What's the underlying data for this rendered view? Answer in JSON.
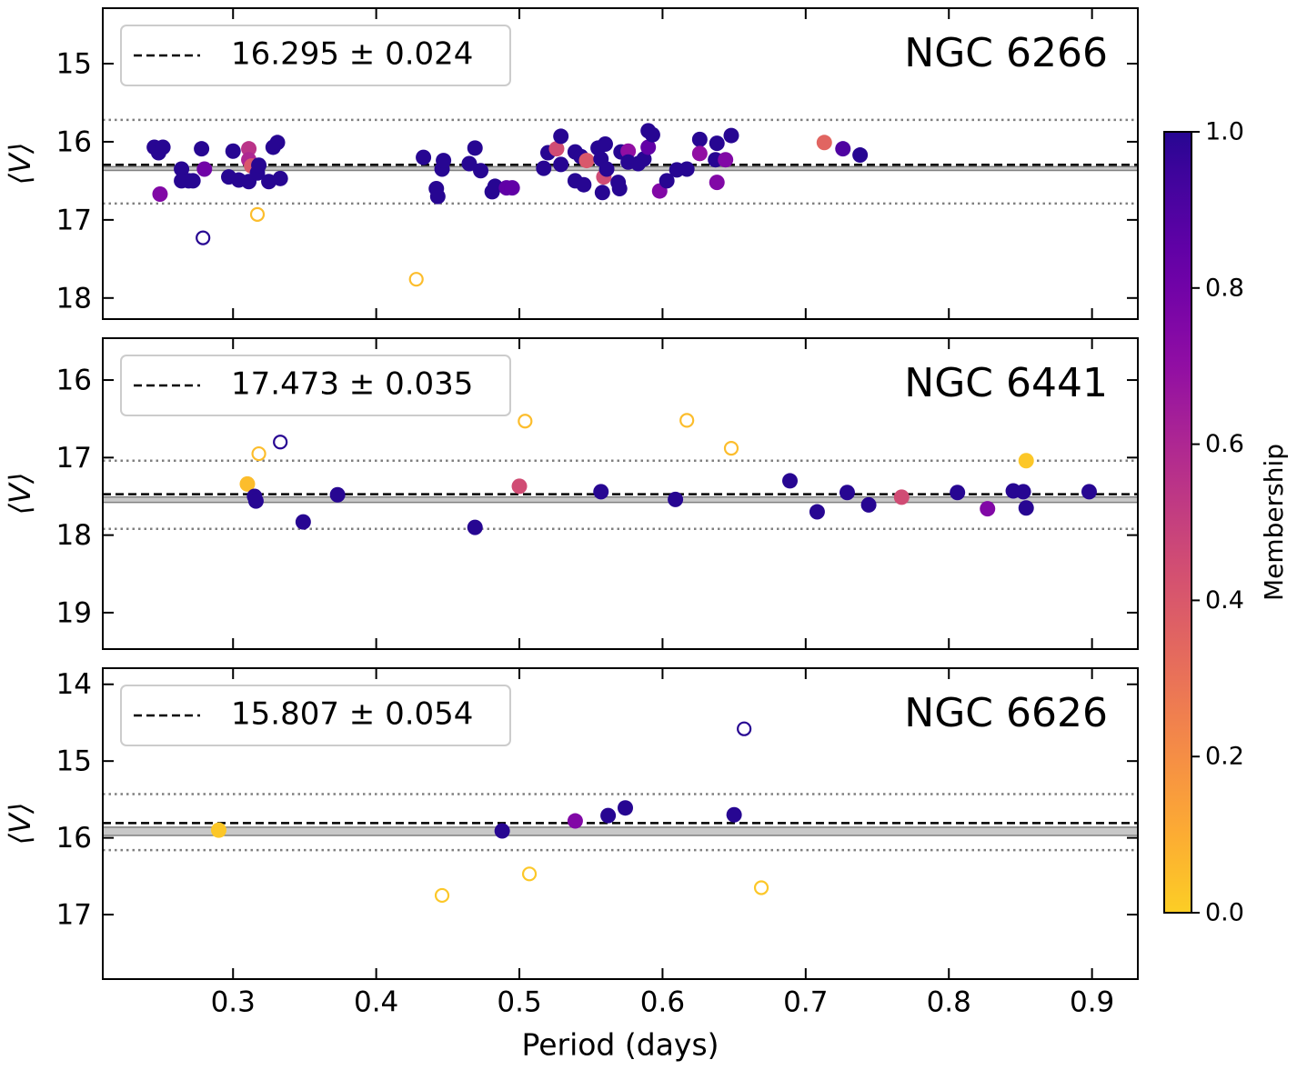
{
  "chart_data": [
    {
      "type": "scatter",
      "title": "NGC 6266",
      "ylabel": "⟨V⟩",
      "xlim": [
        0.209,
        0.932
      ],
      "xticks": [
        0.3,
        0.4,
        0.5,
        0.6,
        0.7,
        0.8,
        0.9
      ],
      "ylim": [
        18.27,
        14.29
      ],
      "yticks": [
        15,
        16,
        17,
        18
      ],
      "mean": {
        "label": "16.295 ± 0.024",
        "value": 16.295,
        "error": 0.024
      },
      "dotted_lines": [
        15.72,
        16.79
      ],
      "x": [
        0.245,
        0.25,
        0.248,
        0.251,
        0.249,
        0.264,
        0.264,
        0.269,
        0.272,
        0.278,
        0.28,
        0.279,
        0.297,
        0.3,
        0.304,
        0.311,
        0.311,
        0.313,
        0.311,
        0.317,
        0.317,
        0.325,
        0.328,
        0.331,
        0.333,
        0.318,
        0.433,
        0.442,
        0.443,
        0.446,
        0.447,
        0.428,
        0.465,
        0.469,
        0.473,
        0.481,
        0.483,
        0.491,
        0.495,
        0.517,
        0.52,
        0.526,
        0.529,
        0.529,
        0.539,
        0.539,
        0.543,
        0.545,
        0.547,
        0.555,
        0.557,
        0.558,
        0.559,
        0.56,
        0.561,
        0.569,
        0.57,
        0.571,
        0.576,
        0.576,
        0.583,
        0.587,
        0.59,
        0.59,
        0.593,
        0.598,
        0.603,
        0.61,
        0.617,
        0.626,
        0.626,
        0.638,
        0.637,
        0.638,
        0.644,
        0.648,
        0.713,
        0.726,
        0.738
      ],
      "values": [
        16.07,
        16.08,
        16.14,
        16.07,
        16.67,
        16.35,
        16.5,
        16.5,
        16.5,
        16.09,
        16.35,
        17.23,
        16.45,
        16.12,
        16.49,
        16.09,
        16.23,
        16.31,
        16.51,
        16.4,
        16.93,
        16.51,
        16.07,
        16.01,
        16.47,
        16.3,
        16.2,
        16.6,
        16.7,
        16.35,
        16.24,
        17.76,
        16.28,
        16.08,
        16.37,
        16.64,
        16.57,
        16.59,
        16.59,
        16.34,
        16.14,
        16.09,
        15.93,
        16.29,
        16.13,
        16.5,
        16.19,
        16.55,
        16.24,
        16.08,
        16.22,
        16.65,
        16.45,
        16.03,
        16.35,
        16.52,
        16.6,
        16.13,
        16.12,
        16.26,
        16.28,
        16.22,
        15.86,
        16.07,
        15.91,
        16.63,
        16.5,
        16.36,
        16.35,
        15.97,
        16.15,
        16.02,
        16.23,
        16.52,
        16.23,
        15.92,
        16.01,
        16.09,
        16.17
      ],
      "membership": [
        1,
        1,
        1,
        1,
        0.75,
        1,
        1,
        1,
        1,
        1,
        0.8,
        1,
        1,
        1,
        1,
        0.55,
        0.6,
        0.4,
        1,
        1,
        0.05,
        1,
        1,
        1,
        1,
        1,
        1,
        1,
        1,
        1,
        1,
        0.05,
        1,
        1,
        1,
        1,
        1,
        0.85,
        0.85,
        1,
        1,
        0.45,
        1,
        1,
        1,
        1,
        1,
        1,
        0.4,
        1,
        1,
        1,
        0.45,
        1,
        1,
        1,
        1,
        1,
        0.7,
        1,
        1,
        1,
        1,
        0.85,
        1,
        0.75,
        1,
        1,
        1,
        1,
        0.7,
        1,
        1,
        0.75,
        0.75,
        1,
        0.35,
        0.9,
        1
      ],
      "filled": [
        true,
        true,
        true,
        true,
        true,
        true,
        true,
        true,
        true,
        true,
        true,
        false,
        true,
        true,
        true,
        true,
        true,
        true,
        true,
        true,
        false,
        true,
        true,
        true,
        true,
        true,
        true,
        true,
        true,
        true,
        true,
        false,
        true,
        true,
        true,
        true,
        true,
        true,
        true,
        true,
        true,
        true,
        true,
        true,
        true,
        true,
        true,
        true,
        true,
        true,
        true,
        true,
        true,
        true,
        true,
        true,
        true,
        true,
        true,
        true,
        true,
        true,
        true,
        true,
        true,
        true,
        true,
        true,
        true,
        true,
        true,
        true,
        true,
        true,
        true,
        true,
        true,
        true,
        true
      ]
    },
    {
      "type": "scatter",
      "title": "NGC 6441",
      "ylabel": "⟨V⟩",
      "xlim": [
        0.209,
        0.932
      ],
      "xticks": [
        0.3,
        0.4,
        0.5,
        0.6,
        0.7,
        0.8,
        0.9
      ],
      "ylim": [
        19.47,
        15.46
      ],
      "yticks": [
        16,
        17,
        18,
        19
      ],
      "mean": {
        "label": "17.473 ± 0.035",
        "value": 17.473,
        "error": 0.035
      },
      "dotted_lines": [
        17.04,
        17.92
      ],
      "x": [
        0.31,
        0.315,
        0.316,
        0.318,
        0.333,
        0.349,
        0.373,
        0.469,
        0.5,
        0.504,
        0.557,
        0.609,
        0.617,
        0.648,
        0.689,
        0.708,
        0.729,
        0.744,
        0.767,
        0.806,
        0.827,
        0.845,
        0.852,
        0.854,
        0.854,
        0.898
      ],
      "values": [
        17.34,
        17.5,
        17.56,
        16.95,
        16.8,
        17.83,
        17.48,
        17.9,
        17.37,
        16.53,
        17.44,
        17.54,
        16.52,
        16.88,
        17.3,
        17.7,
        17.45,
        17.61,
        17.51,
        17.45,
        17.66,
        17.43,
        17.44,
        17.65,
        17.04,
        17.44
      ],
      "membership": [
        0.05,
        1,
        1,
        0.05,
        1,
        1,
        1,
        1,
        0.45,
        0.05,
        1,
        1,
        0.05,
        0.05,
        1,
        1,
        1,
        1,
        0.45,
        1,
        0.75,
        1,
        1,
        1,
        0.02,
        1
      ],
      "filled": [
        true,
        true,
        true,
        false,
        false,
        true,
        true,
        true,
        true,
        false,
        true,
        true,
        false,
        false,
        true,
        true,
        true,
        true,
        true,
        true,
        true,
        true,
        true,
        true,
        true,
        true
      ]
    },
    {
      "type": "scatter",
      "title": "NGC 6626",
      "ylabel": "⟨V⟩",
      "xlabel": "Period (days)",
      "xlim": [
        0.209,
        0.932
      ],
      "xticks": [
        0.3,
        0.4,
        0.5,
        0.6,
        0.7,
        0.8,
        0.9
      ],
      "ylim": [
        17.84,
        13.79
      ],
      "yticks": [
        14,
        15,
        16,
        17
      ],
      "mean": {
        "label": "15.807 ± 0.054",
        "value": 15.807,
        "error": 0.054
      },
      "dotted_lines": [
        15.43,
        16.16
      ],
      "x": [
        0.29,
        0.446,
        0.488,
        0.507,
        0.539,
        0.562,
        0.574,
        0.65,
        0.657,
        0.669
      ],
      "values": [
        15.9,
        16.75,
        15.91,
        16.47,
        15.78,
        15.71,
        15.61,
        15.7,
        14.58,
        16.65
      ],
      "membership": [
        0.02,
        0.02,
        1,
        0.02,
        0.75,
        1,
        1,
        1,
        1,
        0.02
      ],
      "filled": [
        true,
        false,
        true,
        false,
        true,
        true,
        true,
        true,
        false,
        false
      ]
    }
  ],
  "colorbar": {
    "label": "Membership",
    "lim": [
      0,
      1
    ],
    "ticks": [
      {
        "value": 0,
        "label": "0.0"
      },
      {
        "value": 0.2,
        "label": "0.2"
      },
      {
        "value": 0.4,
        "label": "0.4"
      },
      {
        "value": 0.6,
        "label": "0.6"
      },
      {
        "value": 0.8,
        "label": "0.8"
      },
      {
        "value": 1,
        "label": "1.0"
      }
    ]
  }
}
